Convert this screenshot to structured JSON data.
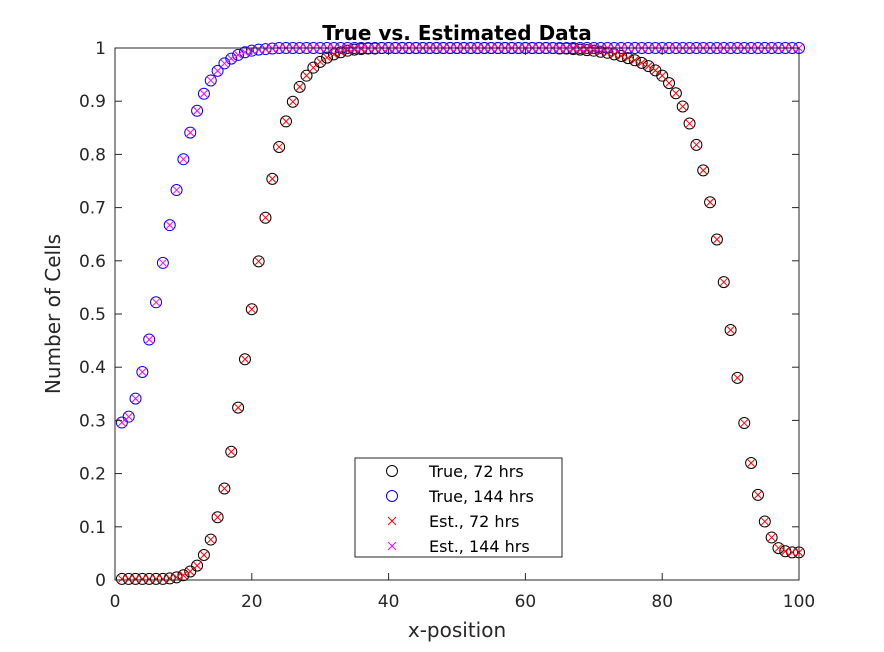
{
  "chart_data": {
    "type": "scatter",
    "title": "True vs. Estimated Data",
    "xlabel": "x-position",
    "ylabel": "Number of Cells",
    "xlim": [
      0,
      100
    ],
    "ylim": [
      0,
      1
    ],
    "xticks": [
      "0",
      "20",
      "40",
      "60",
      "80",
      "100"
    ],
    "yticks": [
      "0",
      "0.1",
      "0.2",
      "0.3",
      "0.4",
      "0.5",
      "0.6",
      "0.7",
      "0.8",
      "0.9",
      "1"
    ],
    "grid": false,
    "legend_position": "bottom-center",
    "x": [
      1,
      2,
      3,
      4,
      5,
      6,
      7,
      8,
      9,
      10,
      11,
      12,
      13,
      14,
      15,
      16,
      17,
      18,
      19,
      20,
      21,
      22,
      23,
      24,
      25,
      26,
      27,
      28,
      29,
      30,
      31,
      32,
      33,
      34,
      35,
      36,
      37,
      38,
      39,
      40,
      41,
      42,
      43,
      44,
      45,
      46,
      47,
      48,
      49,
      50,
      51,
      52,
      53,
      54,
      55,
      56,
      57,
      58,
      59,
      60,
      61,
      62,
      63,
      64,
      65,
      66,
      67,
      68,
      69,
      70,
      71,
      72,
      73,
      74,
      75,
      76,
      77,
      78,
      79,
      80,
      81,
      82,
      83,
      84,
      85,
      86,
      87,
      88,
      89,
      90,
      91,
      92,
      93,
      94,
      95,
      96,
      97,
      98,
      99,
      100
    ],
    "series": [
      {
        "name": "True, 72 hrs",
        "marker": "circle",
        "color": "#000000",
        "values": [
          0.002,
          0.002,
          0.002,
          0.002,
          0.002,
          0.002,
          0.002,
          0.003,
          0.005,
          0.009,
          0.016,
          0.027,
          0.047,
          0.076,
          0.118,
          0.172,
          0.241,
          0.324,
          0.415,
          0.509,
          0.599,
          0.681,
          0.754,
          0.814,
          0.862,
          0.899,
          0.927,
          0.948,
          0.963,
          0.974,
          0.982,
          0.988,
          0.992,
          0.995,
          0.997,
          0.998,
          0.999,
          0.999,
          1,
          1,
          1,
          1,
          1,
          1,
          1,
          1,
          1,
          1,
          1,
          1,
          1,
          1,
          1,
          1,
          1,
          1,
          1,
          1,
          1,
          1,
          1,
          1,
          1,
          1,
          0.999,
          0.999,
          0.998,
          0.997,
          0.996,
          0.995,
          0.993,
          0.991,
          0.988,
          0.985,
          0.981,
          0.977,
          0.972,
          0.966,
          0.958,
          0.948,
          0.934,
          0.915,
          0.89,
          0.858,
          0.818,
          0.77,
          0.71,
          0.64,
          0.56,
          0.47,
          0.38,
          0.295,
          0.22,
          0.16,
          0.11,
          0.08,
          0.06,
          0.054,
          0.052,
          0.052
        ]
      },
      {
        "name": "True, 144 hrs",
        "marker": "circle",
        "color": "#0000ff",
        "values": [
          0.296,
          0.307,
          0.341,
          0.391,
          0.452,
          0.522,
          0.596,
          0.667,
          0.733,
          0.791,
          0.841,
          0.882,
          0.914,
          0.939,
          0.957,
          0.971,
          0.98,
          0.987,
          0.992,
          0.995,
          0.997,
          0.998,
          0.999,
          1,
          1,
          1,
          1,
          1,
          1,
          1,
          1,
          1,
          1,
          1,
          1,
          1,
          1,
          1,
          1,
          1,
          1,
          1,
          1,
          1,
          1,
          1,
          1,
          1,
          1,
          1,
          1,
          1,
          1,
          1,
          1,
          1,
          1,
          1,
          1,
          1,
          1,
          1,
          1,
          1,
          1,
          1,
          1,
          1,
          1,
          1,
          1,
          1,
          1,
          1,
          1,
          1,
          1,
          1,
          1,
          1,
          1,
          1,
          1,
          1,
          1,
          1,
          1,
          1,
          1,
          1,
          1,
          1,
          1,
          1,
          1,
          1,
          1,
          1,
          1,
          1
        ]
      },
      {
        "name": "Est., 72 hrs",
        "marker": "x",
        "color": "#ff0000",
        "values": [
          0.002,
          0.002,
          0.002,
          0.002,
          0.002,
          0.002,
          0.002,
          0.003,
          0.005,
          0.009,
          0.016,
          0.027,
          0.047,
          0.076,
          0.118,
          0.172,
          0.241,
          0.324,
          0.415,
          0.509,
          0.599,
          0.681,
          0.754,
          0.814,
          0.862,
          0.899,
          0.927,
          0.948,
          0.963,
          0.974,
          0.982,
          0.988,
          0.992,
          0.995,
          0.997,
          0.998,
          0.999,
          0.999,
          1,
          1,
          1,
          1,
          1,
          1,
          1,
          1,
          1,
          1,
          1,
          1,
          1,
          1,
          1,
          1,
          1,
          1,
          1,
          1,
          1,
          1,
          1,
          1,
          1,
          1,
          0.999,
          0.999,
          0.998,
          0.997,
          0.996,
          0.995,
          0.993,
          0.991,
          0.988,
          0.985,
          0.981,
          0.977,
          0.972,
          0.966,
          0.958,
          0.948,
          0.934,
          0.915,
          0.89,
          0.858,
          0.818,
          0.77,
          0.71,
          0.64,
          0.56,
          0.47,
          0.38,
          0.295,
          0.22,
          0.16,
          0.11,
          0.08,
          0.06,
          0.054,
          0.052,
          0.052
        ]
      },
      {
        "name": "Est., 144 hrs",
        "marker": "x",
        "color": "#ff00ff",
        "values": [
          0.296,
          0.307,
          0.341,
          0.391,
          0.452,
          0.522,
          0.596,
          0.667,
          0.733,
          0.791,
          0.841,
          0.882,
          0.914,
          0.939,
          0.957,
          0.971,
          0.98,
          0.987,
          0.992,
          0.995,
          0.997,
          0.998,
          0.999,
          1,
          1,
          1,
          1,
          1,
          1,
          1,
          1,
          1,
          1,
          1,
          1,
          1,
          1,
          1,
          1,
          1,
          1,
          1,
          1,
          1,
          1,
          1,
          1,
          1,
          1,
          1,
          1,
          1,
          1,
          1,
          1,
          1,
          1,
          1,
          1,
          1,
          1,
          1,
          1,
          1,
          1,
          1,
          1,
          1,
          1,
          1,
          1,
          1,
          1,
          1,
          1,
          1,
          1,
          1,
          1,
          1,
          1,
          1,
          1,
          1,
          1,
          1,
          1,
          1,
          1,
          1,
          1,
          1,
          1,
          1,
          1,
          1,
          1,
          1,
          1,
          1
        ]
      }
    ]
  }
}
